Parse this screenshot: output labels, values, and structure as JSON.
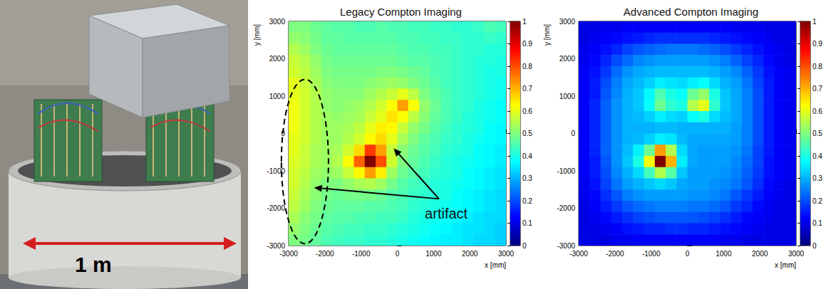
{
  "photo": {
    "label": "1 m"
  },
  "chart_data": [
    {
      "type": "heatmap",
      "title": "Legacy Compton Imaging",
      "x_label": "x [mm]",
      "y_label": "y [mm]",
      "annotation": "artifact",
      "xlim": [
        -3000,
        3000
      ],
      "xticks": [
        -3000,
        -2000,
        -1000,
        0,
        1000,
        2000,
        3000
      ],
      "ylim": [
        -3000,
        3000
      ],
      "yticks": [
        -3000,
        -2000,
        -1000,
        0,
        1000,
        2000,
        3000
      ],
      "colorbar_range": [
        0,
        1
      ],
      "colorbar_ticks": [
        0,
        0.1,
        0.2,
        0.3,
        0.4,
        0.5,
        0.6,
        0.7,
        0.8,
        0.9,
        1
      ],
      "x_centers": [
        -2850,
        -2550,
        -2250,
        -1950,
        -1650,
        -1350,
        -1050,
        -750,
        -450,
        -150,
        150,
        450,
        750,
        1050,
        1350,
        1650,
        1950,
        2250,
        2550,
        2850
      ],
      "y_centers": [
        2850,
        2550,
        2250,
        1950,
        1650,
        1350,
        1050,
        750,
        450,
        150,
        -150,
        -450,
        -750,
        -1050,
        -1350,
        -1650,
        -1950,
        -2250,
        -2550,
        -2850
      ],
      "cells": [
        [
          0.5,
          0.5,
          0.48,
          0.47,
          0.46,
          0.46,
          0.45,
          0.45,
          0.46,
          0.45,
          0.45,
          0.44,
          0.44,
          0.43,
          0.43,
          0.42,
          0.42,
          0.43,
          0.45,
          0.44
        ],
        [
          0.52,
          0.51,
          0.49,
          0.47,
          0.47,
          0.46,
          0.46,
          0.46,
          0.46,
          0.46,
          0.45,
          0.45,
          0.44,
          0.44,
          0.43,
          0.43,
          0.42,
          0.42,
          0.43,
          0.42
        ],
        [
          0.55,
          0.53,
          0.5,
          0.48,
          0.47,
          0.47,
          0.47,
          0.47,
          0.47,
          0.47,
          0.46,
          0.45,
          0.45,
          0.44,
          0.44,
          0.43,
          0.42,
          0.42,
          0.41,
          0.41
        ],
        [
          0.57,
          0.55,
          0.52,
          0.49,
          0.48,
          0.48,
          0.48,
          0.48,
          0.48,
          0.48,
          0.47,
          0.46,
          0.46,
          0.45,
          0.44,
          0.43,
          0.42,
          0.41,
          0.41,
          0.4
        ],
        [
          0.58,
          0.56,
          0.53,
          0.5,
          0.49,
          0.49,
          0.49,
          0.49,
          0.5,
          0.5,
          0.49,
          0.48,
          0.47,
          0.45,
          0.44,
          0.43,
          0.42,
          0.41,
          0.4,
          0.4
        ],
        [
          0.6,
          0.57,
          0.54,
          0.51,
          0.5,
          0.5,
          0.5,
          0.51,
          0.52,
          0.53,
          0.52,
          0.5,
          0.48,
          0.46,
          0.44,
          0.43,
          0.42,
          0.41,
          0.4,
          0.39
        ],
        [
          0.6,
          0.58,
          0.55,
          0.52,
          0.51,
          0.51,
          0.51,
          0.53,
          0.55,
          0.57,
          0.6,
          0.56,
          0.5,
          0.47,
          0.45,
          0.43,
          0.42,
          0.41,
          0.4,
          0.39
        ],
        [
          0.61,
          0.58,
          0.55,
          0.52,
          0.51,
          0.52,
          0.53,
          0.55,
          0.58,
          0.62,
          0.72,
          0.62,
          0.52,
          0.48,
          0.45,
          0.43,
          0.42,
          0.4,
          0.39,
          0.38
        ],
        [
          0.61,
          0.58,
          0.55,
          0.53,
          0.52,
          0.53,
          0.54,
          0.57,
          0.6,
          0.65,
          0.62,
          0.56,
          0.51,
          0.47,
          0.45,
          0.43,
          0.41,
          0.4,
          0.39,
          0.38
        ],
        [
          0.61,
          0.58,
          0.55,
          0.53,
          0.53,
          0.54,
          0.56,
          0.6,
          0.64,
          0.63,
          0.57,
          0.52,
          0.49,
          0.46,
          0.44,
          0.42,
          0.41,
          0.4,
          0.38,
          0.37
        ],
        [
          0.6,
          0.58,
          0.55,
          0.53,
          0.53,
          0.55,
          0.58,
          0.63,
          0.66,
          0.6,
          0.54,
          0.5,
          0.47,
          0.45,
          0.43,
          0.42,
          0.4,
          0.39,
          0.38,
          0.37
        ],
        [
          0.6,
          0.57,
          0.54,
          0.53,
          0.54,
          0.58,
          0.66,
          0.82,
          0.72,
          0.57,
          0.51,
          0.48,
          0.46,
          0.44,
          0.42,
          0.41,
          0.4,
          0.38,
          0.37,
          0.36
        ],
        [
          0.59,
          0.57,
          0.54,
          0.53,
          0.55,
          0.62,
          0.78,
          1.0,
          0.8,
          0.58,
          0.5,
          0.47,
          0.45,
          0.43,
          0.41,
          0.4,
          0.39,
          0.38,
          0.37,
          0.36
        ],
        [
          0.58,
          0.56,
          0.53,
          0.52,
          0.53,
          0.57,
          0.63,
          0.72,
          0.64,
          0.53,
          0.48,
          0.46,
          0.44,
          0.42,
          0.41,
          0.4,
          0.38,
          0.37,
          0.36,
          0.35
        ],
        [
          0.58,
          0.55,
          0.52,
          0.5,
          0.5,
          0.52,
          0.54,
          0.55,
          0.53,
          0.49,
          0.46,
          0.44,
          0.43,
          0.41,
          0.4,
          0.39,
          0.38,
          0.37,
          0.36,
          0.35
        ],
        [
          0.57,
          0.54,
          0.51,
          0.49,
          0.48,
          0.49,
          0.49,
          0.49,
          0.48,
          0.46,
          0.45,
          0.43,
          0.42,
          0.41,
          0.4,
          0.38,
          0.37,
          0.36,
          0.35,
          0.34
        ],
        [
          0.56,
          0.53,
          0.5,
          0.48,
          0.47,
          0.47,
          0.47,
          0.46,
          0.46,
          0.45,
          0.44,
          0.42,
          0.41,
          0.4,
          0.39,
          0.38,
          0.37,
          0.36,
          0.35,
          0.34
        ],
        [
          0.54,
          0.51,
          0.49,
          0.47,
          0.46,
          0.46,
          0.45,
          0.45,
          0.44,
          0.44,
          0.43,
          0.41,
          0.4,
          0.39,
          0.38,
          0.37,
          0.36,
          0.35,
          0.34,
          0.34
        ],
        [
          0.52,
          0.5,
          0.48,
          0.46,
          0.45,
          0.44,
          0.44,
          0.43,
          0.43,
          0.42,
          0.41,
          0.4,
          0.39,
          0.38,
          0.37,
          0.36,
          0.35,
          0.35,
          0.34,
          0.33
        ],
        [
          0.5,
          0.49,
          0.47,
          0.45,
          0.44,
          0.43,
          0.43,
          0.42,
          0.42,
          0.41,
          0.4,
          0.39,
          0.38,
          0.37,
          0.36,
          0.36,
          0.35,
          0.34,
          0.34,
          0.33
        ]
      ]
    },
    {
      "type": "heatmap",
      "title": "Advanced Compton Imaging",
      "x_label": "x [mm]",
      "y_label": "y [mm]",
      "xlim": [
        -3000,
        3000
      ],
      "xticks": [
        -3000,
        -2000,
        -1000,
        0,
        1000,
        2000,
        3000
      ],
      "ylim": [
        -3000,
        3000
      ],
      "yticks": [
        -3000,
        -2000,
        -1000,
        0,
        1000,
        2000,
        3000
      ],
      "colorbar_range": [
        0,
        1
      ],
      "colorbar_ticks": [
        0,
        0.1,
        0.2,
        0.3,
        0.4,
        0.5,
        0.6,
        0.7,
        0.8,
        0.9,
        1
      ],
      "x_centers": [
        -2850,
        -2550,
        -2250,
        -1950,
        -1650,
        -1350,
        -1050,
        -750,
        -450,
        -150,
        150,
        450,
        750,
        1050,
        1350,
        1650,
        1950,
        2250,
        2550,
        2850
      ],
      "y_centers": [
        2850,
        2550,
        2250,
        1950,
        1650,
        1350,
        1050,
        750,
        450,
        150,
        -150,
        -450,
        -750,
        -1050,
        -1350,
        -1650,
        -1950,
        -2250,
        -2550,
        -2850
      ],
      "cells": [
        [
          0.1,
          0.1,
          0.11,
          0.11,
          0.12,
          0.12,
          0.12,
          0.12,
          0.12,
          0.12,
          0.12,
          0.12,
          0.12,
          0.12,
          0.11,
          0.11,
          0.11,
          0.1,
          0.1,
          0.1
        ],
        [
          0.1,
          0.11,
          0.12,
          0.13,
          0.14,
          0.15,
          0.16,
          0.17,
          0.17,
          0.17,
          0.17,
          0.17,
          0.16,
          0.15,
          0.14,
          0.13,
          0.12,
          0.11,
          0.1,
          0.1
        ],
        [
          0.11,
          0.12,
          0.14,
          0.16,
          0.19,
          0.21,
          0.22,
          0.23,
          0.24,
          0.24,
          0.24,
          0.23,
          0.22,
          0.2,
          0.18,
          0.16,
          0.14,
          0.12,
          0.11,
          0.1
        ],
        [
          0.11,
          0.13,
          0.16,
          0.2,
          0.23,
          0.26,
          0.27,
          0.28,
          0.28,
          0.28,
          0.28,
          0.28,
          0.27,
          0.25,
          0.22,
          0.19,
          0.16,
          0.13,
          0.11,
          0.1
        ],
        [
          0.12,
          0.14,
          0.18,
          0.23,
          0.27,
          0.29,
          0.3,
          0.31,
          0.31,
          0.31,
          0.31,
          0.31,
          0.3,
          0.28,
          0.26,
          0.22,
          0.18,
          0.14,
          0.12,
          0.11
        ],
        [
          0.12,
          0.15,
          0.2,
          0.25,
          0.29,
          0.31,
          0.33,
          0.36,
          0.35,
          0.34,
          0.36,
          0.38,
          0.34,
          0.3,
          0.28,
          0.24,
          0.19,
          0.15,
          0.12,
          0.11
        ],
        [
          0.12,
          0.15,
          0.21,
          0.26,
          0.3,
          0.32,
          0.37,
          0.45,
          0.4,
          0.38,
          0.48,
          0.52,
          0.4,
          0.32,
          0.29,
          0.25,
          0.2,
          0.15,
          0.12,
          0.11
        ],
        [
          0.12,
          0.16,
          0.22,
          0.27,
          0.3,
          0.32,
          0.38,
          0.48,
          0.42,
          0.4,
          0.55,
          0.6,
          0.42,
          0.32,
          0.29,
          0.25,
          0.2,
          0.15,
          0.12,
          0.11
        ],
        [
          0.12,
          0.16,
          0.22,
          0.27,
          0.3,
          0.31,
          0.33,
          0.36,
          0.34,
          0.33,
          0.38,
          0.4,
          0.34,
          0.31,
          0.29,
          0.25,
          0.2,
          0.15,
          0.12,
          0.11
        ],
        [
          0.12,
          0.16,
          0.22,
          0.27,
          0.3,
          0.3,
          0.3,
          0.31,
          0.31,
          0.3,
          0.3,
          0.3,
          0.3,
          0.3,
          0.28,
          0.25,
          0.2,
          0.15,
          0.12,
          0.11
        ],
        [
          0.12,
          0.16,
          0.22,
          0.27,
          0.3,
          0.31,
          0.33,
          0.36,
          0.35,
          0.31,
          0.29,
          0.29,
          0.29,
          0.29,
          0.28,
          0.25,
          0.2,
          0.15,
          0.12,
          0.11
        ],
        [
          0.12,
          0.16,
          0.22,
          0.27,
          0.31,
          0.36,
          0.48,
          0.72,
          0.55,
          0.34,
          0.29,
          0.28,
          0.28,
          0.28,
          0.27,
          0.24,
          0.19,
          0.15,
          0.12,
          0.11
        ],
        [
          0.12,
          0.15,
          0.21,
          0.27,
          0.32,
          0.4,
          0.62,
          1.0,
          0.7,
          0.36,
          0.29,
          0.28,
          0.28,
          0.28,
          0.26,
          0.23,
          0.19,
          0.14,
          0.12,
          0.11
        ],
        [
          0.12,
          0.15,
          0.2,
          0.26,
          0.3,
          0.34,
          0.44,
          0.55,
          0.46,
          0.32,
          0.28,
          0.28,
          0.28,
          0.27,
          0.25,
          0.22,
          0.18,
          0.14,
          0.12,
          0.11
        ],
        [
          0.11,
          0.14,
          0.19,
          0.24,
          0.28,
          0.3,
          0.32,
          0.34,
          0.32,
          0.29,
          0.28,
          0.28,
          0.27,
          0.26,
          0.24,
          0.21,
          0.17,
          0.13,
          0.11,
          0.1
        ],
        [
          0.11,
          0.13,
          0.17,
          0.21,
          0.25,
          0.27,
          0.28,
          0.28,
          0.28,
          0.28,
          0.27,
          0.27,
          0.26,
          0.24,
          0.21,
          0.18,
          0.15,
          0.12,
          0.11,
          0.1
        ],
        [
          0.1,
          0.12,
          0.15,
          0.18,
          0.21,
          0.23,
          0.24,
          0.25,
          0.25,
          0.25,
          0.24,
          0.24,
          0.23,
          0.21,
          0.18,
          0.16,
          0.13,
          0.11,
          0.1,
          0.1
        ],
        [
          0.1,
          0.11,
          0.13,
          0.15,
          0.17,
          0.19,
          0.2,
          0.21,
          0.21,
          0.21,
          0.21,
          0.2,
          0.19,
          0.17,
          0.15,
          0.13,
          0.12,
          0.11,
          0.1,
          0.1
        ],
        [
          0.1,
          0.1,
          0.11,
          0.12,
          0.14,
          0.15,
          0.16,
          0.16,
          0.17,
          0.17,
          0.16,
          0.16,
          0.15,
          0.14,
          0.13,
          0.12,
          0.11,
          0.1,
          0.1,
          0.1
        ],
        [
          0.1,
          0.1,
          0.1,
          0.11,
          0.11,
          0.12,
          0.12,
          0.12,
          0.12,
          0.12,
          0.12,
          0.12,
          0.12,
          0.11,
          0.11,
          0.1,
          0.1,
          0.1,
          0.1,
          0.1
        ]
      ]
    }
  ]
}
